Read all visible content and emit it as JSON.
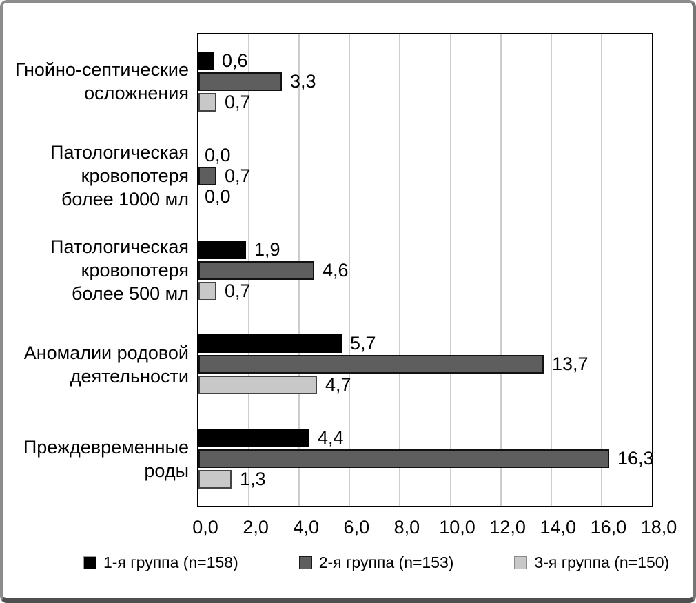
{
  "chart_data": {
    "type": "bar",
    "orientation": "horizontal",
    "title": "",
    "xlabel": "",
    "ylabel": "",
    "xlim": [
      0,
      18
    ],
    "grid": "vertical",
    "legend_position": "bottom",
    "categories": [
      "Гнойно-септические\nосложнения",
      "Патологическая\nкровопотеря\nболее 1000 мл",
      "Патологическая\nкровопотеря\nболее 500 мл",
      "Аномалии родовой\nдеятельности",
      "Преждевременные\nроды"
    ],
    "series": [
      {
        "name": "1-я группа (n=158)",
        "color": "#000000",
        "border": "#000000",
        "swatch_border": "#9c9c9c",
        "values": [
          0.6,
          0.0,
          1.9,
          5.7,
          4.4
        ],
        "labels": [
          "0,6",
          "0,0",
          "1,9",
          "5,7",
          "4,4"
        ]
      },
      {
        "name": "2-я группа (n=153)",
        "color": "#5e5e5e",
        "border": "#111111",
        "swatch_border": "#1a1a1a",
        "values": [
          3.3,
          0.7,
          4.6,
          13.7,
          16.3
        ],
        "labels": [
          "3,3",
          "0,7",
          "4,6",
          "13,7",
          "16,3"
        ]
      },
      {
        "name": "3-я группа (n=150)",
        "color": "#c8c8c8",
        "border": "#444444",
        "swatch_border": "#8a8a8a",
        "values": [
          0.7,
          0.0,
          0.7,
          4.7,
          1.3
        ],
        "labels": [
          "0,7",
          "0,0",
          "0,7",
          "4,7",
          "1,3"
        ]
      }
    ],
    "x_ticks": [
      0,
      2,
      4,
      6,
      8,
      10,
      12,
      14,
      16,
      18
    ],
    "x_tick_labels": [
      "0,0",
      "2,0",
      "4,0",
      "6,0",
      "8,0",
      "10,0",
      "12,0",
      "14,0",
      "16,0",
      "18,0"
    ]
  }
}
